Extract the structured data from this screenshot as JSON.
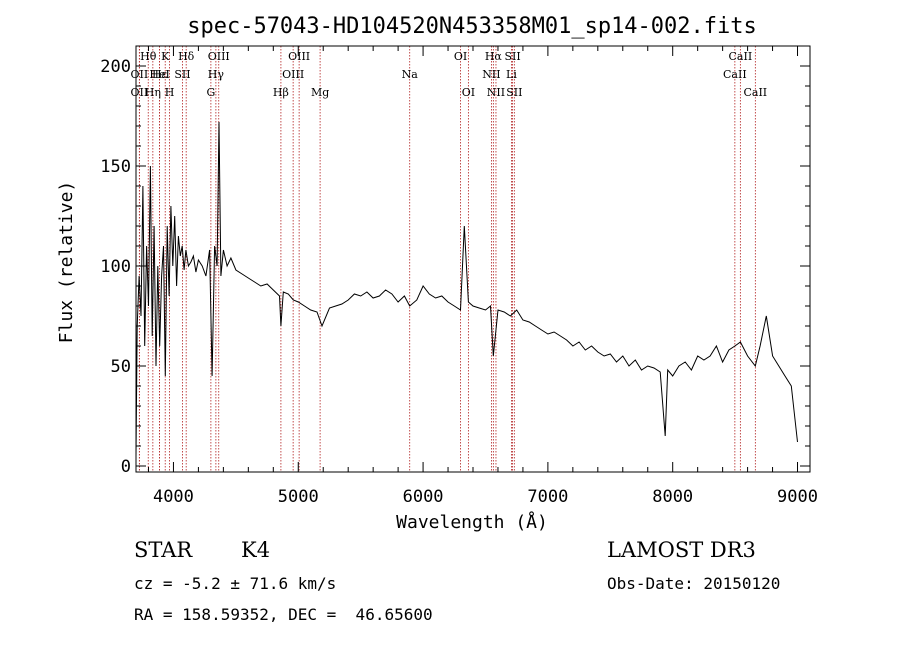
{
  "chart_data": {
    "type": "line",
    "title": "spec-57043-HD104520N453358M01_sp14-002.fits",
    "xlabel": "Wavelength (Å)",
    "ylabel": "Flux (relative)",
    "xlim": [
      3700,
      9100
    ],
    "ylim": [
      -3,
      210
    ],
    "xticks": [
      4000,
      5000,
      6000,
      7000,
      8000,
      9000
    ],
    "yticks": [
      0,
      50,
      100,
      150,
      200
    ],
    "series": [
      {
        "name": "flux",
        "x": [
          3700,
          3710,
          3725,
          3740,
          3755,
          3770,
          3785,
          3800,
          3815,
          3830,
          3845,
          3860,
          3875,
          3890,
          3905,
          3920,
          3935,
          3950,
          3965,
          3980,
          3995,
          4010,
          4025,
          4040,
          4055,
          4070,
          4085,
          4100,
          4120,
          4140,
          4160,
          4180,
          4200,
          4230,
          4260,
          4290,
          4310,
          4330,
          4350,
          4365,
          4380,
          4400,
          4430,
          4460,
          4500,
          4550,
          4600,
          4650,
          4700,
          4750,
          4800,
          4850,
          4861,
          4880,
          4920,
          4960,
          5000,
          5050,
          5100,
          5150,
          5190,
          5250,
          5300,
          5350,
          5400,
          5450,
          5500,
          5550,
          5600,
          5650,
          5700,
          5750,
          5800,
          5850,
          5893,
          5950,
          6000,
          6050,
          6100,
          6150,
          6200,
          6250,
          6300,
          6330,
          6363,
          6400,
          6450,
          6500,
          6540,
          6563,
          6600,
          6650,
          6700,
          6750,
          6800,
          6850,
          6900,
          6950,
          7000,
          7050,
          7100,
          7150,
          7200,
          7250,
          7300,
          7350,
          7400,
          7450,
          7500,
          7550,
          7600,
          7650,
          7700,
          7750,
          7800,
          7850,
          7900,
          7940,
          7960,
          8000,
          8050,
          8100,
          8150,
          8200,
          8250,
          8300,
          8350,
          8400,
          8450,
          8498,
          8542,
          8600,
          8662,
          8700,
          8750,
          8800,
          8850,
          8900,
          8950,
          9000
        ],
        "y": [
          5,
          70,
          95,
          75,
          140,
          60,
          110,
          80,
          150,
          65,
          120,
          50,
          100,
          60,
          95,
          110,
          45,
          120,
          85,
          130,
          100,
          125,
          90,
          115,
          105,
          110,
          98,
          108,
          100,
          102,
          105,
          97,
          103,
          100,
          95,
          108,
          45,
          110,
          100,
          172,
          95,
          108,
          100,
          104,
          98,
          96,
          94,
          92,
          90,
          91,
          88,
          85,
          70,
          87,
          86,
          83,
          82,
          80,
          78,
          77,
          70,
          79,
          80,
          81,
          83,
          86,
          85,
          87,
          84,
          85,
          88,
          86,
          82,
          85,
          80,
          83,
          90,
          86,
          84,
          85,
          82,
          80,
          78,
          120,
          82,
          80,
          79,
          78,
          80,
          55,
          78,
          77,
          75,
          78,
          73,
          72,
          70,
          68,
          66,
          67,
          65,
          63,
          60,
          62,
          58,
          60,
          57,
          55,
          56,
          52,
          55,
          50,
          53,
          48,
          50,
          49,
          47,
          15,
          48,
          45,
          50,
          52,
          48,
          55,
          53,
          55,
          60,
          52,
          58,
          60,
          62,
          55,
          50,
          60,
          75,
          55,
          50,
          45,
          40,
          12
        ]
      }
    ],
    "lines": [
      {
        "label": "OII",
        "x": 3727,
        "row": 1
      },
      {
        "label": "Hθ",
        "x": 3798,
        "row": 0
      },
      {
        "label": "OII",
        "x": 3727,
        "row": 2
      },
      {
        "label": "Hε",
        "x": 3889,
        "row": 1
      },
      {
        "label": "Hη",
        "x": 3835,
        "row": 2
      },
      {
        "label": "K",
        "x": 3934,
        "row": 0
      },
      {
        "label": "HeI",
        "x": 3889,
        "row": 1
      },
      {
        "label": "H",
        "x": 3969,
        "row": 2
      },
      {
        "label": "SII",
        "x": 4072,
        "row": 1
      },
      {
        "label": "Hδ",
        "x": 4102,
        "row": 0
      },
      {
        "label": "OIII",
        "x": 4363,
        "row": 0
      },
      {
        "label": "Hγ",
        "x": 4340,
        "row": 1
      },
      {
        "label": "G",
        "x": 4300,
        "row": 2
      },
      {
        "label": "Hβ",
        "x": 4861,
        "row": 2
      },
      {
        "label": "OIII",
        "x": 5007,
        "row": 0
      },
      {
        "label": "OIII",
        "x": 4959,
        "row": 1
      },
      {
        "label": "Mg",
        "x": 5175,
        "row": 2
      },
      {
        "label": "Na",
        "x": 5893,
        "row": 1
      },
      {
        "label": "OI",
        "x": 6300,
        "row": 0
      },
      {
        "label": "OI",
        "x": 6363,
        "row": 2
      },
      {
        "label": "Hα",
        "x": 6563,
        "row": 0
      },
      {
        "label": "NII",
        "x": 6548,
        "row": 1
      },
      {
        "label": "NII",
        "x": 6584,
        "row": 2
      },
      {
        "label": "SII",
        "x": 6717,
        "row": 0
      },
      {
        "label": "Li",
        "x": 6708,
        "row": 1
      },
      {
        "label": "SII",
        "x": 6731,
        "row": 2
      },
      {
        "label": "CaII",
        "x": 8542,
        "row": 0
      },
      {
        "label": "CaII",
        "x": 8498,
        "row": 1
      },
      {
        "label": "CaII",
        "x": 8662,
        "row": 2
      }
    ],
    "line_color": "#b22222"
  },
  "info": {
    "class": "STAR",
    "subclass": "K4",
    "survey": "LAMOST DR3",
    "redshift": "cz = -5.2 ± 71.6 km/s",
    "obs_date": "Obs-Date: 20150120",
    "coords": "RA = 158.59352, DEC =  46.65600"
  }
}
